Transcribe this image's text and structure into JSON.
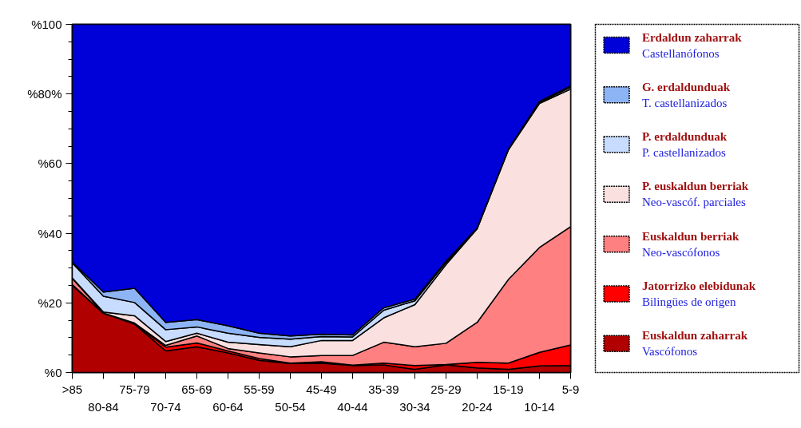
{
  "chart_data": {
    "type": "area",
    "stacked": true,
    "categories": [
      ">85",
      "80-84",
      "75-79",
      "70-74",
      "65-69",
      "60-64",
      "55-59",
      "50-54",
      "45-49",
      "40-44",
      "35-39",
      "30-34",
      "25-29",
      "20-24",
      "15-19",
      "10-14",
      "5-9"
    ],
    "ylim": [
      0,
      100
    ],
    "yticks": [
      {
        "value": 0,
        "label": "%0"
      },
      {
        "value": 5,
        "label": null
      },
      {
        "value": 10,
        "label": null
      },
      {
        "value": 15,
        "label": null
      },
      {
        "value": 20,
        "label": "%20"
      },
      {
        "value": 25,
        "label": null
      },
      {
        "value": 30,
        "label": null
      },
      {
        "value": 35,
        "label": null
      },
      {
        "value": 40,
        "label": "%40"
      },
      {
        "value": 45,
        "label": null
      },
      {
        "value": 50,
        "label": null
      },
      {
        "value": 55,
        "label": null
      },
      {
        "value": 60,
        "label": "%60"
      },
      {
        "value": 65,
        "label": null
      },
      {
        "value": 70,
        "label": null
      },
      {
        "value": 75,
        "label": null
      },
      {
        "value": 80,
        "label": "%80%"
      },
      {
        "value": 85,
        "label": null
      },
      {
        "value": 90,
        "label": null
      },
      {
        "value": 95,
        "label": null
      },
      {
        "value": 100,
        "label": "%100"
      }
    ],
    "legend": "right",
    "grid": false,
    "series": [
      {
        "name": "Euskaldun zaharrak\nVascófonos",
        "color": "#b00000",
        "values": [
          25,
          17,
          13.9,
          6.2,
          7.4,
          5.6,
          3.5,
          2.6,
          2.7,
          2.0,
          2.2,
          0.9,
          2.2,
          1.3,
          0.9,
          1.9,
          2.0
        ]
      },
      {
        "name": "Jatorrizko elebidunak\nBilingües de origen",
        "color": "#ff0000",
        "values": [
          0.3,
          0,
          0.1,
          1.1,
          1.1,
          0.6,
          0.5,
          0.1,
          0.4,
          0.1,
          0.5,
          1.1,
          0.1,
          1.6,
          1.8,
          3.9,
          5.9
        ]
      },
      {
        "name": "Euskaldun berriak\nNeo-vascófonos",
        "color": "#ff8080",
        "values": [
          1.7,
          0.1,
          0.2,
          0.5,
          2.0,
          0.7,
          1.6,
          1.8,
          1.8,
          2.8,
          6.0,
          5.4,
          6.1,
          11.5,
          24.0,
          30.1,
          34.0
        ]
      },
      {
        "name": "P. euskaldun berriak\nNeo-vascóf. parciales",
        "color": "#fbe0e0",
        "values": [
          0.2,
          0.3,
          2.1,
          1.1,
          0.8,
          1.8,
          2.4,
          2.9,
          4.3,
          4.3,
          7.0,
          12.1,
          22.6,
          26.9,
          37.2,
          41.4,
          39.5
        ]
      },
      {
        "name": "P. erdaldunduak\nP. castellanizados",
        "color": "#c8dcff",
        "values": [
          4.3,
          4.5,
          3.8,
          3.4,
          1.8,
          2.6,
          2.1,
          2.2,
          1.1,
          1.0,
          2.2,
          1.1,
          0.6,
          0.1,
          0.1,
          0.3,
          0.5
        ]
      },
      {
        "name": "G. erdaldunduak\nT. castellanizados",
        "color": "#8db4f5",
        "values": [
          0.2,
          1.2,
          4.1,
          2.1,
          2.1,
          2.1,
          1.2,
          0.9,
          0.7,
          0.6,
          0.7,
          0.5,
          0.4,
          0.1,
          0.1,
          0.3,
          0.4
        ]
      },
      {
        "name": "Erdaldun zaharrak\nCastellanófonos",
        "color": "#0000d8",
        "values": [
          68.3,
          76.9,
          75.8,
          85.6,
          84.8,
          86.6,
          88.7,
          89.5,
          89.0,
          89.2,
          81.4,
          78.9,
          68.0,
          58.5,
          35.9,
          22.1,
          17.7
        ]
      }
    ]
  }
}
